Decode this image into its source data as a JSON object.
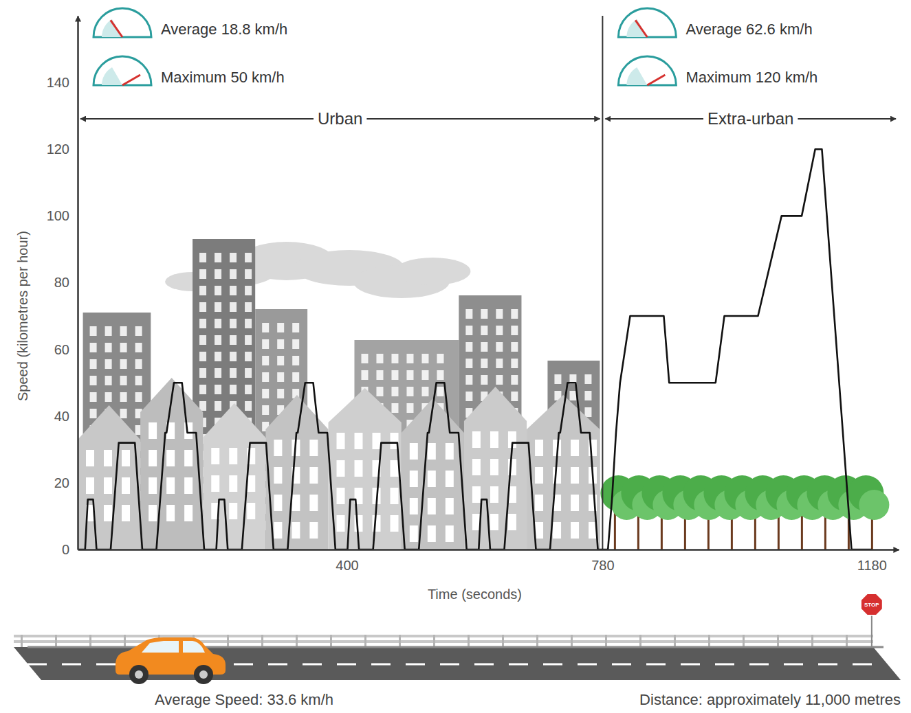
{
  "chart_data": {
    "type": "line",
    "x": [
      0,
      11,
      15,
      23,
      28,
      49,
      61,
      85,
      96,
      117,
      130,
      132,
      143,
      155,
      163,
      176,
      188,
      195,
      206,
      210,
      218,
      223,
      244,
      256,
      280,
      291,
      312,
      325,
      327,
      338,
      350,
      358,
      371,
      383,
      390,
      401,
      405,
      413,
      418,
      439,
      451,
      475,
      486,
      507,
      520,
      522,
      533,
      545,
      553,
      566,
      578,
      585,
      596,
      600,
      608,
      613,
      634,
      646,
      670,
      681,
      702,
      715,
      717,
      728,
      740,
      748,
      761,
      773,
      780,
      788,
      794,
      800,
      806,
      821,
      871,
      879,
      948,
      961,
      1011,
      1046,
      1076,
      1096,
      1106,
      1150,
      1180
    ],
    "values": [
      0,
      0,
      15,
      15,
      0,
      0,
      32,
      32,
      0,
      0,
      35,
      35,
      50,
      50,
      35,
      35,
      0,
      0,
      0,
      15,
      15,
      0,
      0,
      32,
      32,
      0,
      0,
      35,
      35,
      50,
      50,
      35,
      35,
      0,
      0,
      0,
      15,
      15,
      0,
      0,
      32,
      32,
      0,
      0,
      35,
      35,
      50,
      50,
      35,
      35,
      0,
      0,
      0,
      15,
      15,
      0,
      0,
      32,
      32,
      0,
      0,
      35,
      35,
      50,
      50,
      35,
      35,
      0,
      0,
      0,
      15,
      35,
      50,
      70,
      70,
      50,
      50,
      70,
      70,
      100,
      100,
      120,
      120,
      0,
      0
    ],
    "color": "#111111",
    "xlim": [
      0,
      1220
    ],
    "ylim": [
      0,
      160
    ],
    "xticks": [
      400,
      780,
      1180
    ],
    "yticks": [
      0,
      20,
      40,
      60,
      80,
      100,
      120,
      140
    ],
    "grid": false,
    "x_label": "Time (seconds)",
    "y_label": "Speed (kilometres per hour)",
    "sections": [
      {
        "label": "Urban",
        "start": 0,
        "end": 780,
        "average": "Average 18.8 km/h",
        "maximum": "Maximum 50 km/h"
      },
      {
        "label": "Extra-urban",
        "start": 780,
        "end": 1220,
        "average": "Average 62.6 km/h",
        "maximum": "Maximum 120 km/h"
      }
    ],
    "annotations": {
      "average_speed": "Average Speed: 33.6 km/h",
      "distance": "Distance: approximately 11,000 metres",
      "sign": "STOP"
    }
  }
}
